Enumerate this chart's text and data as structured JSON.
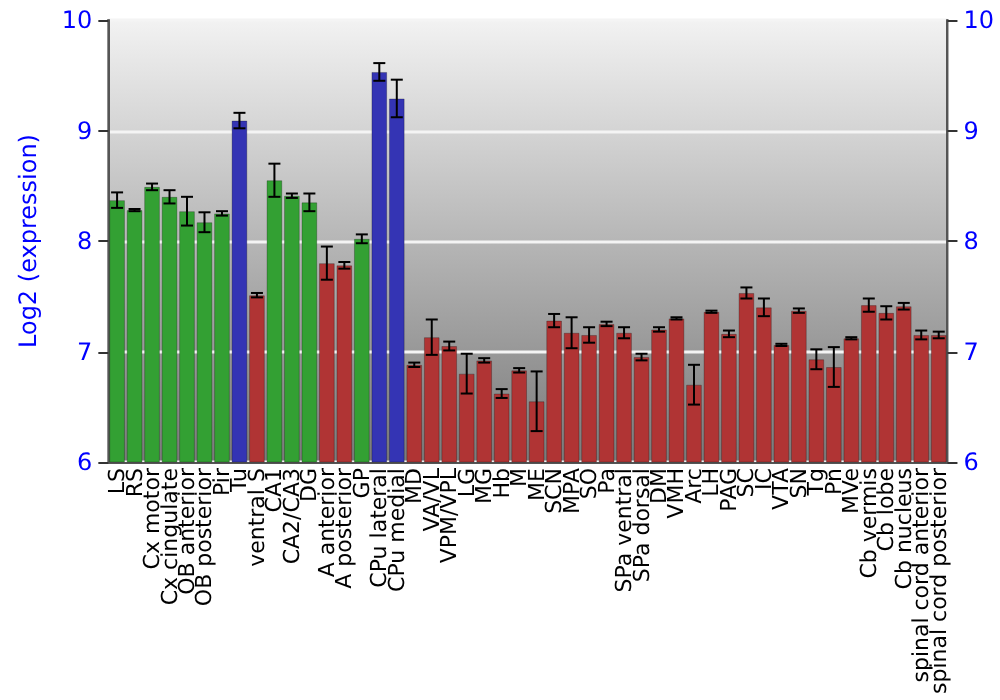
{
  "chart_data": {
    "type": "bar",
    "ylabel": "Log2 (expression)",
    "categories": [
      "LS",
      "RS",
      "Cx motor",
      "Cx cingulate",
      "OB anterior",
      "OB posterior",
      "Pir",
      "Tu",
      "ventral S",
      "CA1",
      "CA2/CA3",
      "DG",
      "A anterior",
      "A posterior",
      "GP",
      "CPu lateral",
      "CPu medial",
      "MD",
      "VA/VL",
      "VPM/VPL",
      "LG",
      "MG",
      "Hb",
      "M",
      "ME",
      "SCN",
      "MPA",
      "SO",
      "Pa",
      "SPa ventral",
      "SPa dorsal",
      "DM",
      "VMH",
      "Arc",
      "LH",
      "PAG",
      "SC",
      "IC",
      "VTA",
      "SN",
      "Tg",
      "Pn",
      "MVe",
      "Cb vermis",
      "Cb lobe",
      "Cb nucleus",
      "spinal cord anterior",
      "spinal cord posterior"
    ],
    "values": [
      8.37,
      8.28,
      8.49,
      8.4,
      8.27,
      8.17,
      8.25,
      9.09,
      7.51,
      8.55,
      8.41,
      8.35,
      7.8,
      7.78,
      8.02,
      9.53,
      9.29,
      6.88,
      7.13,
      7.05,
      6.8,
      6.92,
      6.62,
      6.83,
      6.55,
      7.28,
      7.17,
      7.15,
      7.25,
      7.17,
      6.95,
      7.2,
      7.3,
      6.7,
      7.36,
      7.16,
      7.53,
      7.4,
      7.06,
      7.37,
      6.93,
      6.86,
      7.12,
      7.42,
      7.35,
      7.41,
      7.15,
      7.15
    ],
    "errors": [
      0.07,
      0.01,
      0.03,
      0.06,
      0.13,
      0.09,
      0.02,
      0.07,
      0.02,
      0.15,
      0.02,
      0.08,
      0.15,
      0.03,
      0.04,
      0.08,
      0.17,
      0.02,
      0.16,
      0.04,
      0.18,
      0.02,
      0.04,
      0.02,
      0.27,
      0.06,
      0.14,
      0.07,
      0.02,
      0.05,
      0.03,
      0.02,
      0.01,
      0.18,
      0.01,
      0.03,
      0.05,
      0.08,
      0.01,
      0.02,
      0.09,
      0.18,
      0.01,
      0.06,
      0.06,
      0.03,
      0.04,
      0.03
    ],
    "colors": [
      "#33a033",
      "#33a033",
      "#33a033",
      "#33a033",
      "#33a033",
      "#33a033",
      "#33a033",
      "#3434b4",
      "#b03434",
      "#33a033",
      "#33a033",
      "#33a033",
      "#b03434",
      "#b03434",
      "#33a033",
      "#3434b4",
      "#3434b4",
      "#b03434",
      "#b03434",
      "#b03434",
      "#b03434",
      "#b03434",
      "#b03434",
      "#b03434",
      "#b03434",
      "#b03434",
      "#b03434",
      "#b03434",
      "#b03434",
      "#b03434",
      "#b03434",
      "#b03434",
      "#b03434",
      "#b03434",
      "#b03434",
      "#b03434",
      "#b03434",
      "#b03434",
      "#b03434",
      "#b03434",
      "#b03434",
      "#b03434",
      "#b03434",
      "#b03434",
      "#b03434",
      "#b03434",
      "#b03434",
      "#b03434"
    ],
    "ylim": [
      6,
      10
    ],
    "yticks": [
      6,
      7,
      8,
      9,
      10
    ],
    "y2lim": [
      6,
      10
    ],
    "y2ticks": [
      6,
      7,
      8,
      9,
      10
    ],
    "grid": "y"
  }
}
